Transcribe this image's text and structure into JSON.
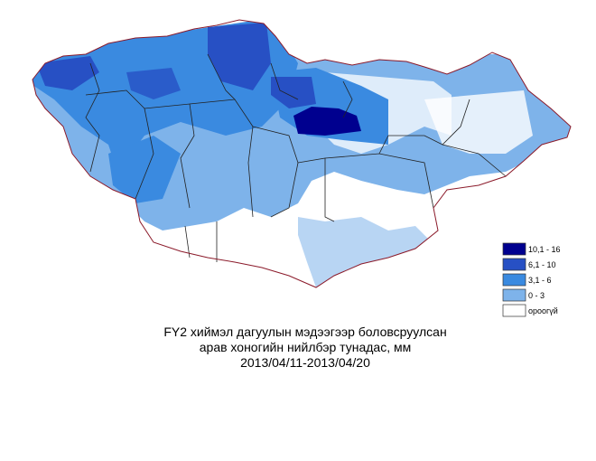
{
  "legend": {
    "items": [
      {
        "label": "10,1 - 16",
        "color": "#00008f"
      },
      {
        "label": "6,1 - 10",
        "color": "#2750c4"
      },
      {
        "label": "3,1 - 6",
        "color": "#3a8ae0"
      },
      {
        "label": "0 - 3",
        "color": "#7eb3ea"
      },
      {
        "label": "ороогүй",
        "color": "#ffffff"
      }
    ]
  },
  "caption": {
    "lines": [
      "FY2 хиймэл дагуулын мэдээгээр боловсруулсан",
      "арав хоногийн нийлбэр тунадас, мм",
      "2013/04/11-2013/04/20"
    ]
  }
}
